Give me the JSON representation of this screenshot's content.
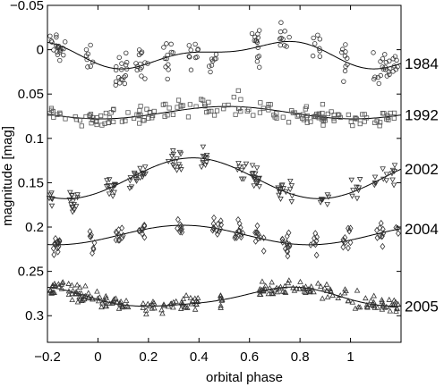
{
  "chart_data": {
    "type": "scatter",
    "xlabel": "orbital phase",
    "ylabel": "magnitude  [mag]",
    "xlim": [
      -0.2,
      1.2
    ],
    "ylim": [
      0.33,
      -0.05
    ],
    "y_inverted": true,
    "x_ticks": [
      -0.2,
      0,
      0.2,
      0.4,
      0.6,
      0.8,
      1
    ],
    "x_tick_labels": [
      "−0.2",
      "0",
      "0.2",
      "0.4",
      "0.6",
      "0.8",
      "1"
    ],
    "y_ticks": [
      -0.05,
      0,
      0.05,
      0.1,
      0.15,
      0.2,
      0.25,
      0.3
    ],
    "y_tick_labels": [
      "−0.05",
      "0",
      "0.05",
      "0.1",
      "0.15",
      "0.2",
      "0.25",
      "0.3"
    ],
    "series": [
      {
        "name": "1984",
        "marker": "circle",
        "fit": {
          "mean": 0.005,
          "terms": [
            [
              0.012,
              1,
              0.6
            ],
            [
              0.006,
              2,
              0.8
            ]
          ]
        },
        "scatter": 0.018,
        "clusters": [
          [
            -0.19,
            -0.13,
            20
          ],
          [
            -0.05,
            -0.02,
            8
          ],
          [
            0.07,
            0.12,
            18
          ],
          [
            0.15,
            0.2,
            14
          ],
          [
            0.26,
            0.3,
            12
          ],
          [
            0.36,
            0.4,
            10
          ],
          [
            0.44,
            0.47,
            8
          ],
          [
            0.61,
            0.64,
            14
          ],
          [
            0.72,
            0.76,
            10
          ],
          [
            0.85,
            0.88,
            8
          ],
          [
            0.96,
            0.99,
            10
          ],
          [
            1.09,
            1.19,
            26
          ]
        ]
      },
      {
        "name": "1992",
        "marker": "square",
        "fit": {
          "mean": 0.071,
          "terms": [
            [
              0.007,
              1,
              1.5
            ]
          ]
        },
        "scatter": 0.01,
        "clusters": [
          [
            -0.2,
            1.2,
            170
          ]
        ]
      },
      {
        "name": "2002",
        "marker": "triangle-down",
        "fit": {
          "mean": 0.145,
          "terms": [
            [
              0.023,
              1,
              2.35
            ]
          ]
        },
        "scatter": 0.011,
        "clusters": [
          [
            -0.2,
            -0.18,
            8
          ],
          [
            -0.12,
            -0.08,
            14
          ],
          [
            0.03,
            0.07,
            14
          ],
          [
            0.12,
            0.19,
            18
          ],
          [
            0.26,
            0.33,
            14
          ],
          [
            0.4,
            0.44,
            10
          ],
          [
            0.55,
            0.59,
            8
          ],
          [
            0.6,
            0.64,
            16
          ],
          [
            0.71,
            0.77,
            16
          ],
          [
            0.88,
            0.92,
            8
          ],
          [
            1.0,
            1.04,
            8
          ],
          [
            1.09,
            1.18,
            14
          ]
        ]
      },
      {
        "name": "2004",
        "marker": "diamond",
        "fit": {
          "mean": 0.209,
          "terms": [
            [
              0.011,
              1,
              2.6
            ]
          ]
        },
        "scatter": 0.01,
        "clusters": [
          [
            -0.18,
            -0.15,
            14
          ],
          [
            -0.04,
            -0.01,
            8
          ],
          [
            0.07,
            0.1,
            10
          ],
          [
            0.16,
            0.19,
            8
          ],
          [
            0.31,
            0.34,
            8
          ],
          [
            0.45,
            0.49,
            12
          ],
          [
            0.54,
            0.58,
            12
          ],
          [
            0.62,
            0.66,
            10
          ],
          [
            0.73,
            0.76,
            14
          ],
          [
            0.84,
            0.87,
            8
          ],
          [
            0.97,
            1.0,
            10
          ],
          [
            1.1,
            1.13,
            10
          ],
          [
            1.18,
            1.2,
            4
          ]
        ]
      },
      {
        "name": "2005",
        "marker": "triangle-up",
        "fit": {
          "mean": 0.28,
          "terms": [
            [
              0.0105,
              1,
              0.0
            ],
            [
              0.002,
              2,
              1.0
            ]
          ]
        },
        "scatter": 0.008,
        "clusters": [
          [
            -0.2,
            0.12,
            80
          ],
          [
            0.17,
            0.4,
            40
          ],
          [
            0.48,
            0.5,
            8
          ],
          [
            0.64,
            0.93,
            56
          ],
          [
            0.95,
            1.2,
            44
          ]
        ]
      }
    ]
  }
}
